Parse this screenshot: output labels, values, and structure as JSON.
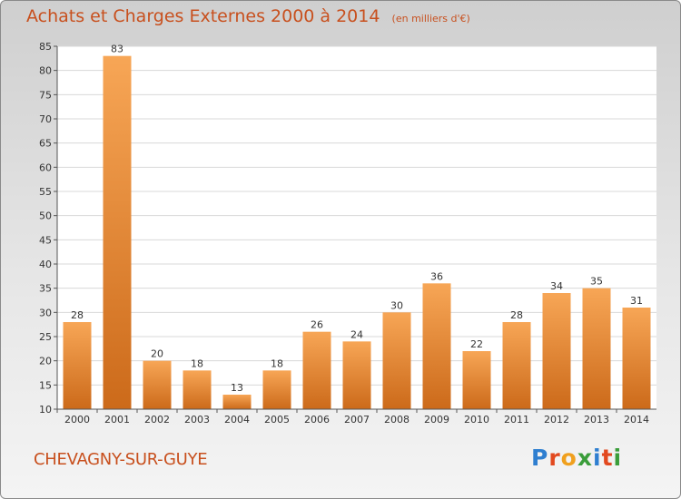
{
  "header": {
    "title": "Achats et Charges Externes 2000 à 2014",
    "subtitle": "(en milliers d'€)"
  },
  "footer": {
    "commune": "CHEVAGNY-SUR-GUYE",
    "logo_text": "Proxiti"
  },
  "colors": {
    "title": "#c8501e",
    "bar_light": "#f5a455",
    "bar_dark": "#cc6a1a",
    "plot_bg": "#ffffff"
  },
  "chart_data": {
    "type": "bar",
    "title": "Achats et Charges Externes 2000 à 2014",
    "subtitle": "(en milliers d'€)",
    "xlabel": "",
    "ylabel": "",
    "categories": [
      "2000",
      "2001",
      "2002",
      "2003",
      "2004",
      "2005",
      "2006",
      "2007",
      "2008",
      "2009",
      "2010",
      "2011",
      "2012",
      "2013",
      "2014"
    ],
    "values": [
      28,
      83,
      20,
      18,
      13,
      18,
      26,
      24,
      30,
      36,
      22,
      28,
      34,
      35,
      31
    ],
    "ylim": [
      10,
      85
    ],
    "yticks": [
      10,
      15,
      20,
      25,
      30,
      35,
      40,
      45,
      50,
      55,
      60,
      65,
      70,
      75,
      80,
      85
    ],
    "grid": true,
    "legend": "none"
  }
}
